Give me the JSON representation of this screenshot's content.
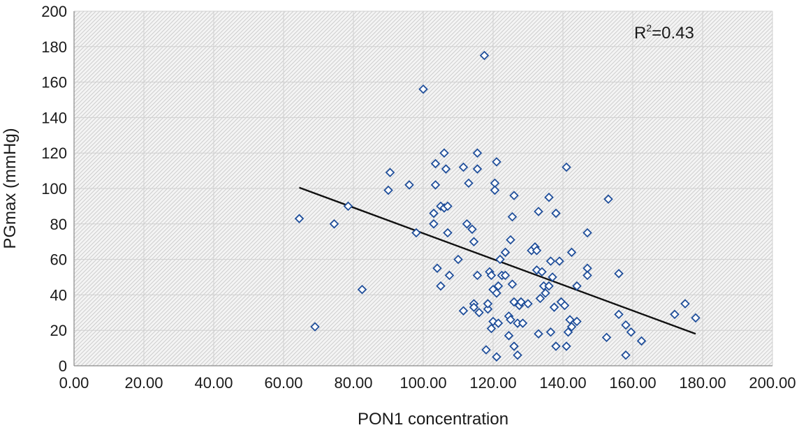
{
  "chart_data": {
    "type": "scatter",
    "title": "",
    "xlabel": "PON1 concentration",
    "ylabel": "PGmax (mmHg)",
    "xlim": [
      0,
      200
    ],
    "ylim": [
      0,
      200
    ],
    "x_ticks": [
      "0.00",
      "20.00",
      "40.00",
      "60.00",
      "80.00",
      "100.00",
      "120.00",
      "140.00",
      "160.00",
      "180.00",
      "200.00"
    ],
    "y_ticks": [
      "0",
      "20",
      "40",
      "60",
      "80",
      "100",
      "120",
      "140",
      "160",
      "180",
      "200"
    ],
    "grid": true,
    "annotation": {
      "prefix": "R",
      "sup": "2",
      "suffix": "=0.43"
    },
    "marker": "diamond-open",
    "marker_color": "#1f4e9a",
    "trendline": {
      "x": [
        64.5,
        178
      ],
      "y": [
        100.5,
        18
      ]
    },
    "points": [
      [
        64.5,
        83
      ],
      [
        69,
        22
      ],
      [
        74.5,
        80
      ],
      [
        78.5,
        90
      ],
      [
        82.5,
        43
      ],
      [
        90,
        99
      ],
      [
        90.5,
        109
      ],
      [
        96,
        102
      ],
      [
        98,
        75
      ],
      [
        100,
        156
      ],
      [
        103,
        80
      ],
      [
        103,
        86
      ],
      [
        103.5,
        102
      ],
      [
        103.5,
        114
      ],
      [
        104,
        55
      ],
      [
        105,
        90
      ],
      [
        105,
        45
      ],
      [
        106,
        120
      ],
      [
        106,
        89
      ],
      [
        106.5,
        111
      ],
      [
        107,
        75
      ],
      [
        107,
        90
      ],
      [
        107.5,
        51
      ],
      [
        110,
        60
      ],
      [
        111.5,
        31
      ],
      [
        111.5,
        112
      ],
      [
        112.5,
        80
      ],
      [
        113,
        103
      ],
      [
        114,
        77
      ],
      [
        114.5,
        70
      ],
      [
        114.5,
        35
      ],
      [
        114.5,
        33
      ],
      [
        115.5,
        120
      ],
      [
        115.5,
        111
      ],
      [
        115.5,
        51
      ],
      [
        116,
        30
      ],
      [
        117.5,
        175
      ],
      [
        118,
        9
      ],
      [
        118.5,
        32
      ],
      [
        118.5,
        35
      ],
      [
        119,
        53
      ],
      [
        119.5,
        51
      ],
      [
        119.5,
        21
      ],
      [
        120,
        25
      ],
      [
        120,
        43
      ],
      [
        120.5,
        103
      ],
      [
        120.5,
        99
      ],
      [
        121,
        115
      ],
      [
        121,
        5
      ],
      [
        121,
        41
      ],
      [
        121.5,
        45
      ],
      [
        121.5,
        24
      ],
      [
        122,
        60
      ],
      [
        122.5,
        51
      ],
      [
        123.5,
        51
      ],
      [
        123.5,
        64
      ],
      [
        124.5,
        17
      ],
      [
        124.5,
        28
      ],
      [
        125,
        71
      ],
      [
        125,
        26
      ],
      [
        125.5,
        84
      ],
      [
        125.5,
        46
      ],
      [
        126,
        96
      ],
      [
        126,
        36
      ],
      [
        126,
        11
      ],
      [
        127,
        6
      ],
      [
        127,
        24
      ],
      [
        127.5,
        34
      ],
      [
        128,
        36
      ],
      [
        128.5,
        24
      ],
      [
        130,
        35
      ],
      [
        131,
        65
      ],
      [
        132,
        67
      ],
      [
        132.5,
        65
      ],
      [
        132.5,
        54
      ],
      [
        133,
        87
      ],
      [
        133,
        18
      ],
      [
        133.5,
        38
      ],
      [
        134,
        53
      ],
      [
        134.5,
        45
      ],
      [
        135,
        41
      ],
      [
        136,
        95
      ],
      [
        136,
        45
      ],
      [
        136.5,
        59
      ],
      [
        136.5,
        19
      ],
      [
        137,
        50
      ],
      [
        137.5,
        33
      ],
      [
        138,
        11
      ],
      [
        138,
        86
      ],
      [
        139,
        59
      ],
      [
        139.5,
        36
      ],
      [
        140.5,
        34
      ],
      [
        141,
        11
      ],
      [
        141,
        112
      ],
      [
        141.5,
        19
      ],
      [
        142,
        26
      ],
      [
        142.5,
        64
      ],
      [
        142.5,
        22
      ],
      [
        144,
        45
      ],
      [
        144,
        25
      ],
      [
        147,
        55
      ],
      [
        147,
        75
      ],
      [
        147,
        51
      ],
      [
        152.5,
        16
      ],
      [
        153,
        94
      ],
      [
        156,
        52
      ],
      [
        156,
        29
      ],
      [
        158,
        23
      ],
      [
        158,
        6
      ],
      [
        159.5,
        19
      ],
      [
        162.5,
        14
      ],
      [
        172,
        29
      ],
      [
        175,
        35
      ],
      [
        178,
        27
      ]
    ]
  }
}
